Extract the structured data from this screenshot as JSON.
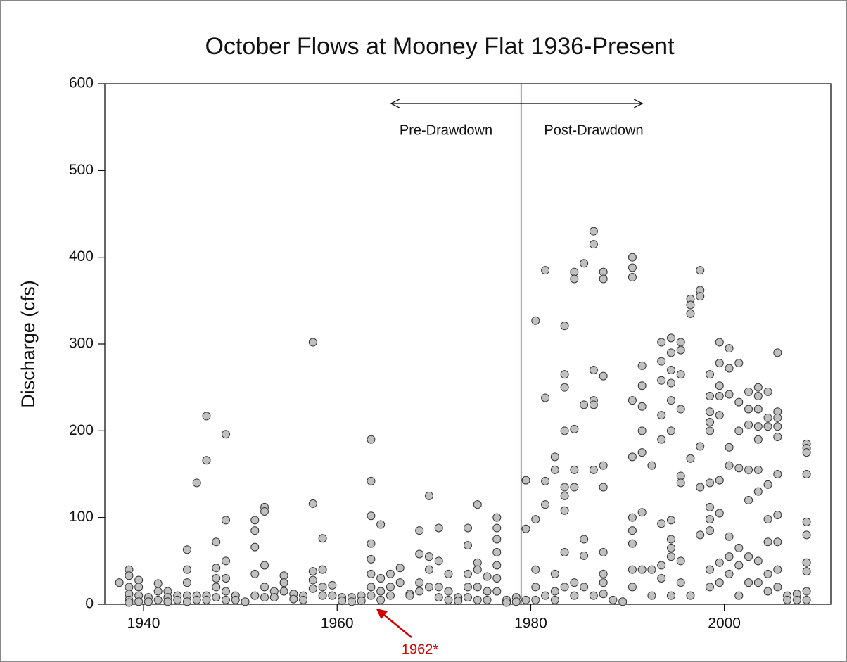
{
  "chart_data": {
    "type": "scatter",
    "title": "October Flows at Mooney Flat 1936-Present",
    "y_label": "Discharge (cfs)",
    "annotations": {
      "pre": "Pre-Drawdown",
      "post": "Post-Drawdown",
      "event": "1962*"
    },
    "vline": 1979,
    "vline_color": "#c00000",
    "color": "#c0c0c0",
    "xlim": [
      1936,
      2011
    ],
    "xticks": [
      1940,
      1960,
      1980,
      2000
    ],
    "ylim": [
      0,
      600
    ],
    "yticks": [
      0,
      100,
      200,
      300,
      400,
      500,
      600
    ],
    "x": [
      1937.5,
      1938.5,
      1938.5,
      1938.5,
      1938.5,
      1938.5,
      1938.5,
      1939.5,
      1939.5,
      1939.5,
      1939.5,
      1940.5,
      1940.5,
      1941.5,
      1941.5,
      1941.5,
      1942.5,
      1942.5,
      1942.5,
      1943.5,
      1943.5,
      1944.5,
      1944.5,
      1944.5,
      1944.5,
      1944.5,
      1945.5,
      1945.5,
      1945.5,
      1946.5,
      1946.5,
      1946.5,
      1946.5,
      1947.5,
      1947.5,
      1947.5,
      1947.5,
      1947.5,
      1948.5,
      1948.5,
      1948.5,
      1948.5,
      1948.5,
      1948.5,
      1949.5,
      1949.5,
      1950.5,
      1951.5,
      1951.5,
      1951.5,
      1951.5,
      1951.5,
      1952.5,
      1952.5,
      1952.5,
      1952.5,
      1952.5,
      1953.5,
      1953.5,
      1954.5,
      1954.5,
      1954.5,
      1955.5,
      1955.5,
      1956.5,
      1956.5,
      1957.5,
      1957.5,
      1957.5,
      1957.5,
      1957.5,
      1958.5,
      1958.5,
      1958.5,
      1958.5,
      1959.5,
      1959.5,
      1960.5,
      1960.5,
      1961.5,
      1961.5,
      1962.5,
      1962.5,
      1963.5,
      1963.5,
      1963.5,
      1963.5,
      1963.5,
      1963.5,
      1963.5,
      1963.5,
      1964.5,
      1964.5,
      1964.5,
      1964.5,
      1965.5,
      1965.5,
      1965.5,
      1966.5,
      1966.5,
      1967.5,
      1967.5,
      1968.5,
      1968.5,
      1968.5,
      1968.5,
      1969.5,
      1969.5,
      1969.5,
      1969.5,
      1970.5,
      1970.5,
      1970.5,
      1970.5,
      1971.5,
      1971.5,
      1971.5,
      1972.5,
      1972.5,
      1973.5,
      1973.5,
      1973.5,
      1973.5,
      1973.5,
      1974.5,
      1974.5,
      1974.5,
      1974.5,
      1974.5,
      1975.5,
      1975.5,
      1975.5,
      1976.5,
      1976.5,
      1976.5,
      1976.5,
      1976.5,
      1976.5,
      1976.5,
      1977.5,
      1977.5,
      1978.5,
      1978.5,
      1979.5,
      1979.5,
      1979.5,
      1980.5,
      1980.5,
      1980.5,
      1980.5,
      1980.5,
      1981.5,
      1981.5,
      1981.5,
      1981.5,
      1981.5,
      1982.5,
      1982.5,
      1982.5,
      1982.5,
      1982.5,
      1983.5,
      1983.5,
      1983.5,
      1983.5,
      1983.5,
      1983.5,
      1983.5,
      1983.5,
      1983.5,
      1984.5,
      1984.5,
      1984.5,
      1984.5,
      1984.5,
      1984.5,
      1984.5,
      1985.5,
      1985.5,
      1985.5,
      1985.5,
      1985.5,
      1986.5,
      1986.5,
      1986.5,
      1986.5,
      1986.5,
      1986.5,
      1986.5,
      1987.5,
      1987.5,
      1987.5,
      1987.5,
      1987.5,
      1987.5,
      1987.5,
      1987.5,
      1987.5,
      1988.5,
      1989.5,
      1990.5,
      1990.5,
      1990.5,
      1990.5,
      1990.5,
      1990.5,
      1990.5,
      1990.5,
      1990.5,
      1990.5,
      1991.5,
      1991.5,
      1991.5,
      1991.5,
      1991.5,
      1991.5,
      1991.5,
      1992.5,
      1992.5,
      1992.5,
      1993.5,
      1993.5,
      1993.5,
      1993.5,
      1993.5,
      1993.5,
      1993.5,
      1993.5,
      1994.5,
      1994.5,
      1994.5,
      1994.5,
      1994.5,
      1994.5,
      1994.5,
      1994.5,
      1994.5,
      1994.5,
      1994.5,
      1995.5,
      1995.5,
      1995.5,
      1995.5,
      1995.5,
      1995.5,
      1995.5,
      1995.5,
      1996.5,
      1996.5,
      1996.5,
      1996.5,
      1996.5,
      1997.5,
      1997.5,
      1997.5,
      1997.5,
      1997.5,
      1997.5,
      1998.5,
      1998.5,
      1998.5,
      1998.5,
      1998.5,
      1998.5,
      1998.5,
      1998.5,
      1998.5,
      1998.5,
      1998.5,
      1999.5,
      1999.5,
      1999.5,
      1999.5,
      1999.5,
      1999.5,
      1999.5,
      1999.5,
      1999.5,
      2000.5,
      2000.5,
      2000.5,
      2000.5,
      2000.5,
      2000.5,
      2000.5,
      2000.5,
      2001.5,
      2001.5,
      2001.5,
      2001.5,
      2001.5,
      2001.5,
      2001.5,
      2002.5,
      2002.5,
      2002.5,
      2002.5,
      2002.5,
      2002.5,
      2002.5,
      2003.5,
      2003.5,
      2003.5,
      2003.5,
      2003.5,
      2003.5,
      2003.5,
      2003.5,
      2003.5,
      2004.5,
      2004.5,
      2004.5,
      2004.5,
      2004.5,
      2004.5,
      2004.5,
      2004.5,
      2005.5,
      2005.5,
      2005.5,
      2005.5,
      2005.5,
      2005.5,
      2005.5,
      2005.5,
      2005.5,
      2005.5,
      2006.5,
      2006.5,
      2007.5,
      2007.5,
      2008.5,
      2008.5,
      2008.5,
      2008.5,
      2008.5,
      2008.5,
      2008.5,
      2008.5,
      2008.5,
      2008.5
    ],
    "values": [
      25,
      40,
      33,
      20,
      12,
      5,
      2,
      28,
      20,
      10,
      3,
      8,
      3,
      24,
      15,
      5,
      15,
      8,
      3,
      10,
      5,
      63,
      40,
      25,
      10,
      3,
      140,
      10,
      5,
      217,
      166,
      10,
      5,
      72,
      42,
      30,
      20,
      8,
      196,
      97,
      50,
      30,
      15,
      5,
      10,
      5,
      3,
      97,
      85,
      66,
      35,
      10,
      112,
      107,
      45,
      20,
      8,
      15,
      8,
      33,
      25,
      15,
      12,
      6,
      10,
      5,
      302,
      116,
      38,
      28,
      18,
      76,
      40,
      20,
      10,
      22,
      10,
      8,
      4,
      8,
      3,
      10,
      4,
      190,
      142,
      102,
      70,
      52,
      35,
      20,
      10,
      92,
      30,
      15,
      5,
      35,
      20,
      10,
      42,
      25,
      12,
      10,
      85,
      58,
      25,
      15,
      125,
      55,
      40,
      20,
      88,
      50,
      20,
      8,
      35,
      15,
      5,
      8,
      4,
      88,
      68,
      35,
      20,
      8,
      115,
      48,
      40,
      20,
      5,
      32,
      15,
      5,
      100,
      88,
      75,
      60,
      45,
      30,
      15,
      5,
      2,
      8,
      3,
      143,
      87,
      5,
      327,
      98,
      40,
      20,
      5,
      385,
      238,
      142,
      115,
      10,
      170,
      155,
      35,
      15,
      5,
      321,
      265,
      250,
      200,
      135,
      125,
      108,
      60,
      20,
      383,
      375,
      202,
      155,
      135,
      25,
      10,
      393,
      230,
      75,
      56,
      20,
      430,
      415,
      270,
      235,
      230,
      155,
      10,
      383,
      375,
      263,
      160,
      135,
      60,
      35,
      25,
      12,
      5,
      3,
      400,
      388,
      377,
      235,
      170,
      100,
      85,
      70,
      40,
      20,
      275,
      252,
      228,
      200,
      175,
      106,
      40,
      160,
      40,
      10,
      302,
      280,
      258,
      218,
      190,
      93,
      45,
      30,
      307,
      290,
      270,
      255,
      235,
      200,
      97,
      75,
      65,
      55,
      10,
      302,
      293,
      265,
      225,
      148,
      140,
      50,
      25,
      352,
      345,
      335,
      168,
      10,
      385,
      362,
      355,
      182,
      135,
      80,
      265,
      240,
      222,
      210,
      200,
      140,
      112,
      98,
      85,
      40,
      20,
      302,
      278,
      252,
      240,
      218,
      143,
      105,
      48,
      25,
      295,
      272,
      242,
      181,
      160,
      78,
      55,
      35,
      278,
      233,
      200,
      157,
      65,
      45,
      10,
      245,
      225,
      207,
      155,
      120,
      55,
      25,
      250,
      240,
      225,
      205,
      190,
      155,
      130,
      50,
      25,
      245,
      215,
      205,
      138,
      98,
      72,
      35,
      15,
      290,
      222,
      215,
      205,
      193,
      150,
      103,
      72,
      40,
      20,
      10,
      5,
      12,
      5,
      185,
      180,
      175,
      150,
      95,
      80,
      48,
      38,
      15,
      5
    ]
  }
}
